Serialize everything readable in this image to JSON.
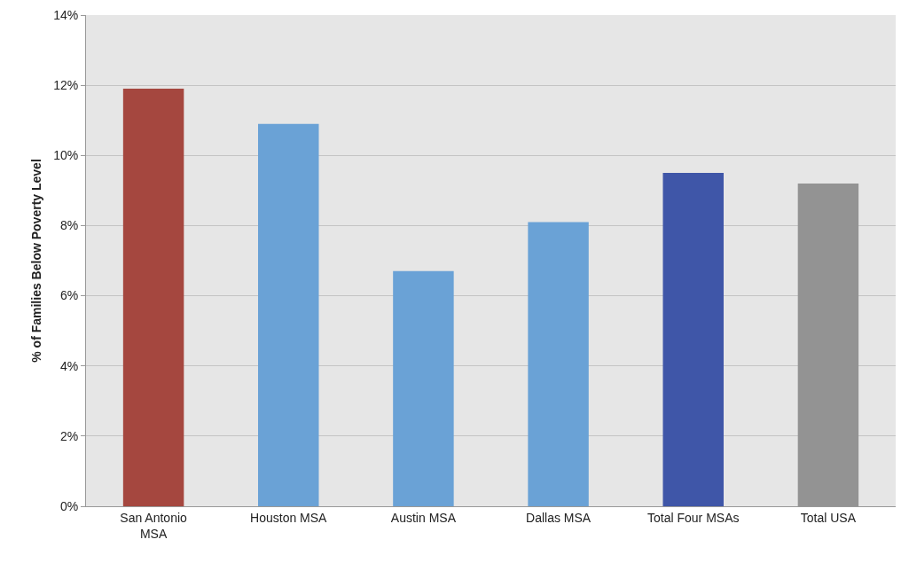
{
  "chart_data": {
    "type": "bar",
    "ylabel": "% of Families Below Poverty Level",
    "categories": [
      "San Antonio\nMSA",
      "Houston MSA",
      "Austin MSA",
      "Dallas MSA",
      "Total Four MSAs",
      "Total USA"
    ],
    "values": [
      11.9,
      10.9,
      6.7,
      8.1,
      9.5,
      9.2
    ],
    "colors": [
      "#a5473f",
      "#6aa2d6",
      "#6aa2d6",
      "#6aa2d6",
      "#3f56a8",
      "#939393"
    ],
    "ylim": [
      0,
      14
    ],
    "yticks": [
      {
        "value": 0,
        "label": "0%"
      },
      {
        "value": 2,
        "label": "2%"
      },
      {
        "value": 4,
        "label": "4%"
      },
      {
        "value": 6,
        "label": "6%"
      },
      {
        "value": 8,
        "label": "8%"
      },
      {
        "value": 10,
        "label": "10%"
      },
      {
        "value": 12,
        "label": "12%"
      },
      {
        "value": 14,
        "label": "14%"
      }
    ],
    "grid": "y"
  }
}
